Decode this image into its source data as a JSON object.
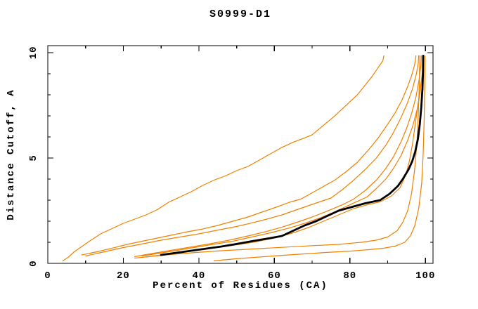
{
  "window": {
    "title": "S0999-D1",
    "background": "#ffffff"
  },
  "chart_data": {
    "type": "line",
    "title": "S0999-D1",
    "xlabel": "Percent of Residues (CA)",
    "ylabel": "Distance Cutoff, A",
    "xlim": [
      0,
      102
    ],
    "ylim": [
      0,
      10.33
    ],
    "grid": false,
    "legend": "none",
    "x_ticks_major": [
      0,
      20,
      40,
      60,
      80,
      100
    ],
    "x_ticks_minor": [
      10,
      30,
      50,
      70,
      90
    ],
    "y_ticks_major": [
      0,
      5,
      10
    ],
    "y_ticks_minor": [
      1,
      2,
      3,
      4,
      6,
      7,
      8,
      9
    ],
    "colors": {
      "model_curve": "#f08000",
      "highlight_curve": "#000000",
      "axis": "#000000"
    },
    "series": [
      {
        "name": "orange-outlier",
        "color": "#f08000",
        "width": 1.2,
        "points": [
          [
            4,
            0.12
          ],
          [
            5.5,
            0.3
          ],
          [
            7,
            0.55
          ],
          [
            9,
            0.8
          ],
          [
            11,
            1.05
          ],
          [
            14,
            1.4
          ],
          [
            17,
            1.65
          ],
          [
            20,
            1.9
          ],
          [
            23,
            2.1
          ],
          [
            26,
            2.3
          ],
          [
            29,
            2.55
          ],
          [
            32,
            2.9
          ],
          [
            35,
            3.15
          ],
          [
            38,
            3.4
          ],
          [
            41,
            3.7
          ],
          [
            44,
            3.95
          ],
          [
            47,
            4.15
          ],
          [
            50,
            4.4
          ],
          [
            53,
            4.6
          ],
          [
            56,
            4.9
          ],
          [
            59,
            5.2
          ],
          [
            62,
            5.5
          ],
          [
            65,
            5.75
          ],
          [
            68,
            5.95
          ],
          [
            70,
            6.1
          ],
          [
            73,
            6.55
          ],
          [
            76,
            7.0
          ],
          [
            79,
            7.5
          ],
          [
            82,
            8.0
          ],
          [
            84,
            8.45
          ],
          [
            86,
            8.9
          ],
          [
            87.5,
            9.3
          ],
          [
            88.7,
            9.6
          ],
          [
            89,
            9.85
          ]
        ]
      },
      {
        "name": "orange-2",
        "color": "#f08000",
        "width": 1.2,
        "points": [
          [
            9,
            0.4
          ],
          [
            13,
            0.55
          ],
          [
            17,
            0.72
          ],
          [
            21,
            0.9
          ],
          [
            25,
            1.05
          ],
          [
            29,
            1.2
          ],
          [
            33,
            1.35
          ],
          [
            37,
            1.5
          ],
          [
            41,
            1.63
          ],
          [
            45,
            1.8
          ],
          [
            49,
            2.0
          ],
          [
            53,
            2.2
          ],
          [
            57,
            2.45
          ],
          [
            61,
            2.7
          ],
          [
            64,
            2.9
          ],
          [
            67,
            3.05
          ],
          [
            70,
            3.35
          ],
          [
            73,
            3.65
          ],
          [
            76,
            3.95
          ],
          [
            79,
            4.35
          ],
          [
            82,
            4.8
          ],
          [
            85,
            5.4
          ],
          [
            87.5,
            5.95
          ],
          [
            90,
            6.6
          ],
          [
            92,
            7.15
          ],
          [
            93.8,
            7.75
          ],
          [
            95.2,
            8.35
          ],
          [
            96.3,
            8.9
          ],
          [
            97.1,
            9.4
          ],
          [
            97.5,
            9.85
          ]
        ]
      },
      {
        "name": "orange-3",
        "color": "#f08000",
        "width": 1.2,
        "points": [
          [
            10,
            0.35
          ],
          [
            15,
            0.55
          ],
          [
            20,
            0.75
          ],
          [
            25,
            0.92
          ],
          [
            30,
            1.1
          ],
          [
            35,
            1.25
          ],
          [
            40,
            1.4
          ],
          [
            45,
            1.58
          ],
          [
            50,
            1.75
          ],
          [
            54,
            1.92
          ],
          [
            58,
            2.1
          ],
          [
            62,
            2.3
          ],
          [
            66,
            2.55
          ],
          [
            70,
            2.8
          ],
          [
            75,
            3.1
          ],
          [
            78,
            3.5
          ],
          [
            81,
            3.95
          ],
          [
            84,
            4.45
          ],
          [
            87,
            5.0
          ],
          [
            89.5,
            5.6
          ],
          [
            91.5,
            6.2
          ],
          [
            93.5,
            6.9
          ],
          [
            95.2,
            7.6
          ],
          [
            96.6,
            8.3
          ],
          [
            97.6,
            9.0
          ],
          [
            98.1,
            9.5
          ],
          [
            98.2,
            9.85
          ]
        ]
      },
      {
        "name": "orange-4",
        "color": "#f08000",
        "width": 1.2,
        "points": [
          [
            23,
            0.32
          ],
          [
            28,
            0.48
          ],
          [
            33,
            0.63
          ],
          [
            38,
            0.78
          ],
          [
            43,
            0.93
          ],
          [
            48,
            1.1
          ],
          [
            53,
            1.3
          ],
          [
            58,
            1.52
          ],
          [
            62,
            1.72
          ],
          [
            66,
            1.95
          ],
          [
            70,
            2.2
          ],
          [
            74,
            2.48
          ],
          [
            78,
            2.78
          ],
          [
            81,
            3.05
          ],
          [
            84,
            3.45
          ],
          [
            87,
            3.95
          ],
          [
            89.5,
            4.5
          ],
          [
            91.5,
            5.05
          ],
          [
            93.5,
            5.75
          ],
          [
            95,
            6.4
          ],
          [
            96.4,
            7.15
          ],
          [
            97.5,
            7.9
          ],
          [
            98.3,
            8.7
          ],
          [
            98.8,
            9.4
          ],
          [
            98.9,
            9.85
          ]
        ]
      },
      {
        "name": "orange-5",
        "color": "#f08000",
        "width": 1.2,
        "points": [
          [
            25,
            0.35
          ],
          [
            31,
            0.52
          ],
          [
            37,
            0.7
          ],
          [
            43,
            0.88
          ],
          [
            49,
            1.05
          ],
          [
            54,
            1.25
          ],
          [
            59,
            1.45
          ],
          [
            64,
            1.68
          ],
          [
            68,
            1.9
          ],
          [
            72,
            2.15
          ],
          [
            76,
            2.45
          ],
          [
            80,
            2.78
          ],
          [
            84.5,
            3.15
          ],
          [
            87,
            3.55
          ],
          [
            89.5,
            4.0
          ],
          [
            91.5,
            4.5
          ],
          [
            93.5,
            5.1
          ],
          [
            95.2,
            5.8
          ],
          [
            96.6,
            6.5
          ],
          [
            97.8,
            7.3
          ],
          [
            98.6,
            8.1
          ],
          [
            99.1,
            8.9
          ],
          [
            99.35,
            9.5
          ],
          [
            99.4,
            9.85
          ]
        ]
      },
      {
        "name": "orange-6",
        "color": "#f08000",
        "width": 1.2,
        "points": [
          [
            26,
            0.3
          ],
          [
            32,
            0.45
          ],
          [
            38,
            0.6
          ],
          [
            44,
            0.73
          ],
          [
            50,
            0.88
          ],
          [
            55,
            1.02
          ],
          [
            60,
            1.2
          ],
          [
            65,
            1.45
          ],
          [
            69,
            1.7
          ],
          [
            73,
            2.0
          ],
          [
            77,
            2.3
          ],
          [
            81,
            2.6
          ],
          [
            85,
            2.8
          ],
          [
            88,
            2.92
          ],
          [
            91,
            3.2
          ],
          [
            93.3,
            3.6
          ],
          [
            94.8,
            4.2
          ],
          [
            95.8,
            4.9
          ],
          [
            96.6,
            5.7
          ],
          [
            97.3,
            6.6
          ],
          [
            98,
            7.5
          ],
          [
            98.7,
            8.4
          ],
          [
            99.3,
            9.2
          ],
          [
            99.6,
            9.85
          ]
        ]
      },
      {
        "name": "orange-late-1",
        "color": "#f08000",
        "width": 1.2,
        "points": [
          [
            23,
            0.25
          ],
          [
            30,
            0.38
          ],
          [
            38,
            0.5
          ],
          [
            46,
            0.6
          ],
          [
            54,
            0.68
          ],
          [
            62,
            0.76
          ],
          [
            70,
            0.84
          ],
          [
            77,
            0.9
          ],
          [
            83,
            1.0
          ],
          [
            87,
            1.1
          ],
          [
            90,
            1.25
          ],
          [
            92.5,
            1.55
          ],
          [
            94,
            1.95
          ],
          [
            95.3,
            2.5
          ],
          [
            96.3,
            3.3
          ],
          [
            97.1,
            4.4
          ],
          [
            97.7,
            5.6
          ],
          [
            98.1,
            7.0
          ],
          [
            98.35,
            8.4
          ],
          [
            98.45,
            9.3
          ],
          [
            98.5,
            9.85
          ]
        ]
      },
      {
        "name": "orange-late-2",
        "color": "#f08000",
        "width": 1.2,
        "points": [
          [
            44,
            0.12
          ],
          [
            50,
            0.22
          ],
          [
            56,
            0.3
          ],
          [
            62,
            0.38
          ],
          [
            68,
            0.45
          ],
          [
            74,
            0.52
          ],
          [
            80,
            0.58
          ],
          [
            85,
            0.65
          ],
          [
            89,
            0.72
          ],
          [
            92,
            0.82
          ],
          [
            94.5,
            1.0
          ],
          [
            96,
            1.3
          ],
          [
            97.2,
            1.8
          ],
          [
            98.2,
            2.6
          ],
          [
            99,
            3.8
          ],
          [
            99.4,
            5.2
          ],
          [
            99.65,
            6.8
          ],
          [
            99.8,
            8.3
          ],
          [
            99.9,
            9.85
          ]
        ]
      },
      {
        "name": "black-bold",
        "color": "#000000",
        "width": 2.8,
        "points": [
          [
            30,
            0.4
          ],
          [
            34,
            0.5
          ],
          [
            38,
            0.6
          ],
          [
            42,
            0.7
          ],
          [
            46,
            0.8
          ],
          [
            50,
            0.92
          ],
          [
            54,
            1.05
          ],
          [
            58,
            1.17
          ],
          [
            62,
            1.3
          ],
          [
            65,
            1.55
          ],
          [
            68,
            1.8
          ],
          [
            71,
            2.0
          ],
          [
            74,
            2.25
          ],
          [
            77,
            2.5
          ],
          [
            80,
            2.65
          ],
          [
            84,
            2.85
          ],
          [
            88,
            3.0
          ],
          [
            90.5,
            3.3
          ],
          [
            92.7,
            3.67
          ],
          [
            94,
            4.0
          ],
          [
            95.5,
            4.45
          ],
          [
            96.5,
            4.85
          ],
          [
            97.3,
            5.3
          ],
          [
            98,
            5.9
          ],
          [
            98.5,
            6.6
          ],
          [
            98.9,
            7.4
          ],
          [
            99.2,
            8.3
          ],
          [
            99.35,
            9.1
          ],
          [
            99.4,
            9.85
          ]
        ]
      }
    ]
  }
}
